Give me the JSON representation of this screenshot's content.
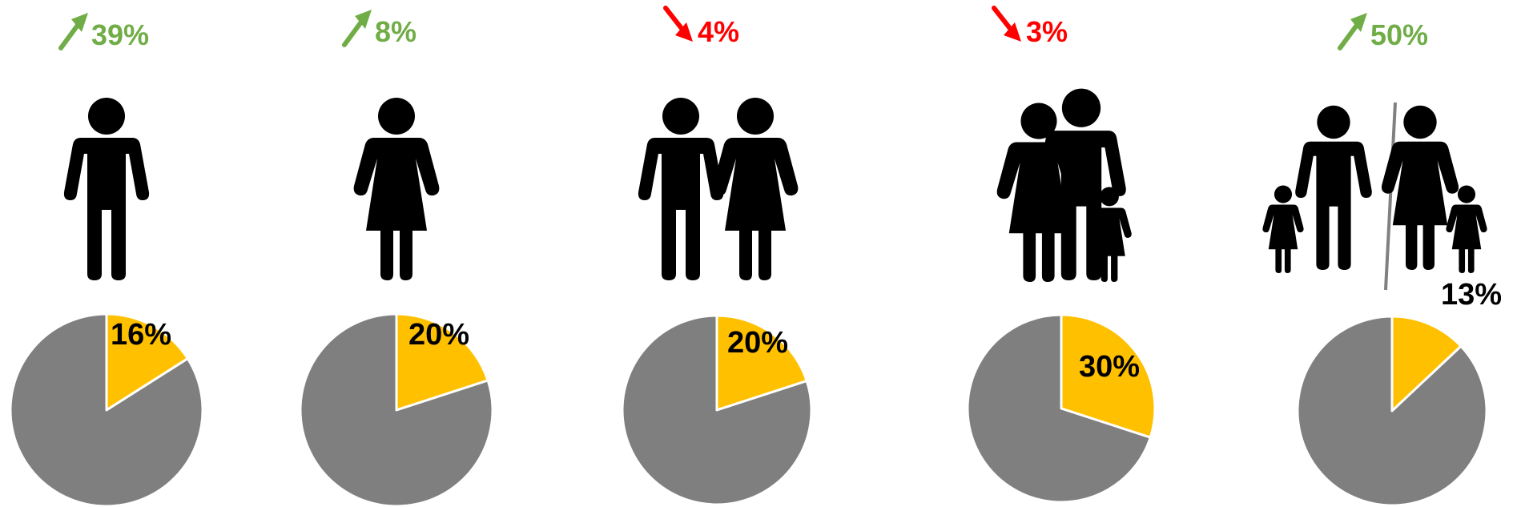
{
  "colors": {
    "up": "#70ad47",
    "down": "#ff0000",
    "slice": "#ffc000",
    "rest": "#7f7f7f",
    "figure": "#000000",
    "divider": "#808080"
  },
  "icons": [
    "single-man-icon",
    "single-woman-icon",
    "couple-icon",
    "family-icon",
    "single-parents-icon"
  ],
  "chart_data": [
    {
      "type": "pie",
      "icon": "single-man-icon",
      "change": {
        "direction": "up",
        "text": "39%"
      },
      "slice_label": "16%",
      "values": [
        16,
        84
      ]
    },
    {
      "type": "pie",
      "icon": "single-woman-icon",
      "change": {
        "direction": "up",
        "text": "8%"
      },
      "slice_label": "20%",
      "values": [
        20,
        80
      ]
    },
    {
      "type": "pie",
      "icon": "couple-icon",
      "change": {
        "direction": "down",
        "text": "4%"
      },
      "slice_label": "20%",
      "values": [
        20,
        80
      ]
    },
    {
      "type": "pie",
      "icon": "family-icon",
      "change": {
        "direction": "down",
        "text": "3%"
      },
      "slice_label": "30%",
      "values": [
        30,
        70
      ]
    },
    {
      "type": "pie",
      "icon": "single-parents-icon",
      "change": {
        "direction": "up",
        "text": "50%"
      },
      "slice_label": "13%",
      "values": [
        13,
        87
      ]
    }
  ]
}
